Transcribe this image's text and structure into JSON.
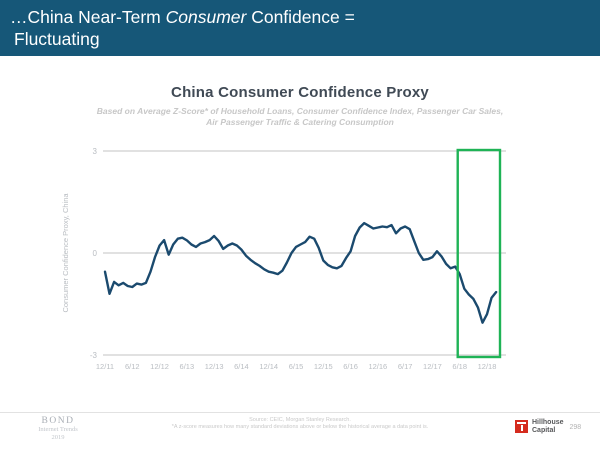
{
  "slide": {
    "header": {
      "line1_prefix": "…China Near-Term ",
      "line1_italic": "Consumer",
      "line1_suffix": " Confidence =",
      "line2": "Fluctuating",
      "bg_color": "#165778",
      "text_color": "#FFFFFF"
    },
    "footer": {
      "source_line1": "Source: CEIC, Morgan Stanley Research.",
      "source_line2": "*A z-score measures how many standard deviations above or below the historical average a data point is.",
      "brand": {
        "name": "BOND",
        "line2": "Internet Trends",
        "line3": "2019"
      },
      "partner": {
        "name_line1": "Hillhouse",
        "name_line2": "Capital",
        "logo_color": "#D52B1E"
      },
      "page_number": "298"
    }
  },
  "chart_data": {
    "type": "line",
    "title": "China Consumer Confidence Proxy",
    "subtitle_line1": "Based on Average Z-Score* of Household Loans, Consumer Confidence Index, Passenger Car Sales,",
    "subtitle_line2": "Air Passenger Traffic & Catering Consumption",
    "ylabel": "Consumer Confidence Proxy, China",
    "xlabel": "",
    "ylim": [
      -3,
      3
    ],
    "yticks": [
      3,
      0,
      -3
    ],
    "grid": "horizontal",
    "legend": "none",
    "xtick_labels": [
      "12/11",
      "6/12",
      "12/12",
      "6/13",
      "12/13",
      "6/14",
      "12/14",
      "6/15",
      "12/15",
      "6/16",
      "12/16",
      "6/17",
      "12/17",
      "6/18",
      "12/18"
    ],
    "series": [
      {
        "name": "Consumer Confidence Proxy z-score",
        "x_start": "12/2011",
        "x_end": "2/2019",
        "frequency": "monthly",
        "values": [
          -0.55,
          -1.2,
          -0.85,
          -0.95,
          -0.88,
          -0.97,
          -1.0,
          -0.9,
          -0.93,
          -0.88,
          -0.55,
          -0.12,
          0.22,
          0.38,
          -0.05,
          0.25,
          0.42,
          0.45,
          0.37,
          0.25,
          0.18,
          0.28,
          0.32,
          0.38,
          0.5,
          0.35,
          0.12,
          0.22,
          0.28,
          0.22,
          0.1,
          -0.08,
          -0.2,
          -0.3,
          -0.38,
          -0.48,
          -0.55,
          -0.58,
          -0.62,
          -0.52,
          -0.28,
          0.0,
          0.18,
          0.25,
          0.32,
          0.48,
          0.42,
          0.15,
          -0.22,
          -0.35,
          -0.42,
          -0.45,
          -0.38,
          -0.15,
          0.05,
          0.5,
          0.75,
          0.88,
          0.8,
          0.72,
          0.75,
          0.78,
          0.76,
          0.82,
          0.58,
          0.72,
          0.78,
          0.7,
          0.35,
          0.0,
          -0.2,
          -0.18,
          -0.12,
          0.05,
          -0.1,
          -0.32,
          -0.45,
          -0.4,
          -0.62,
          -1.05,
          -1.22,
          -1.35,
          -1.6,
          -2.05,
          -1.8,
          -1.32,
          -1.15
        ]
      }
    ],
    "highlight_box": {
      "from": "6/18",
      "to": "2/19",
      "color": "#1FB356"
    },
    "line_color": "#1B4A6E",
    "grid_color": "#c3c3c3",
    "axis_text_color": "#b9bdc2"
  }
}
